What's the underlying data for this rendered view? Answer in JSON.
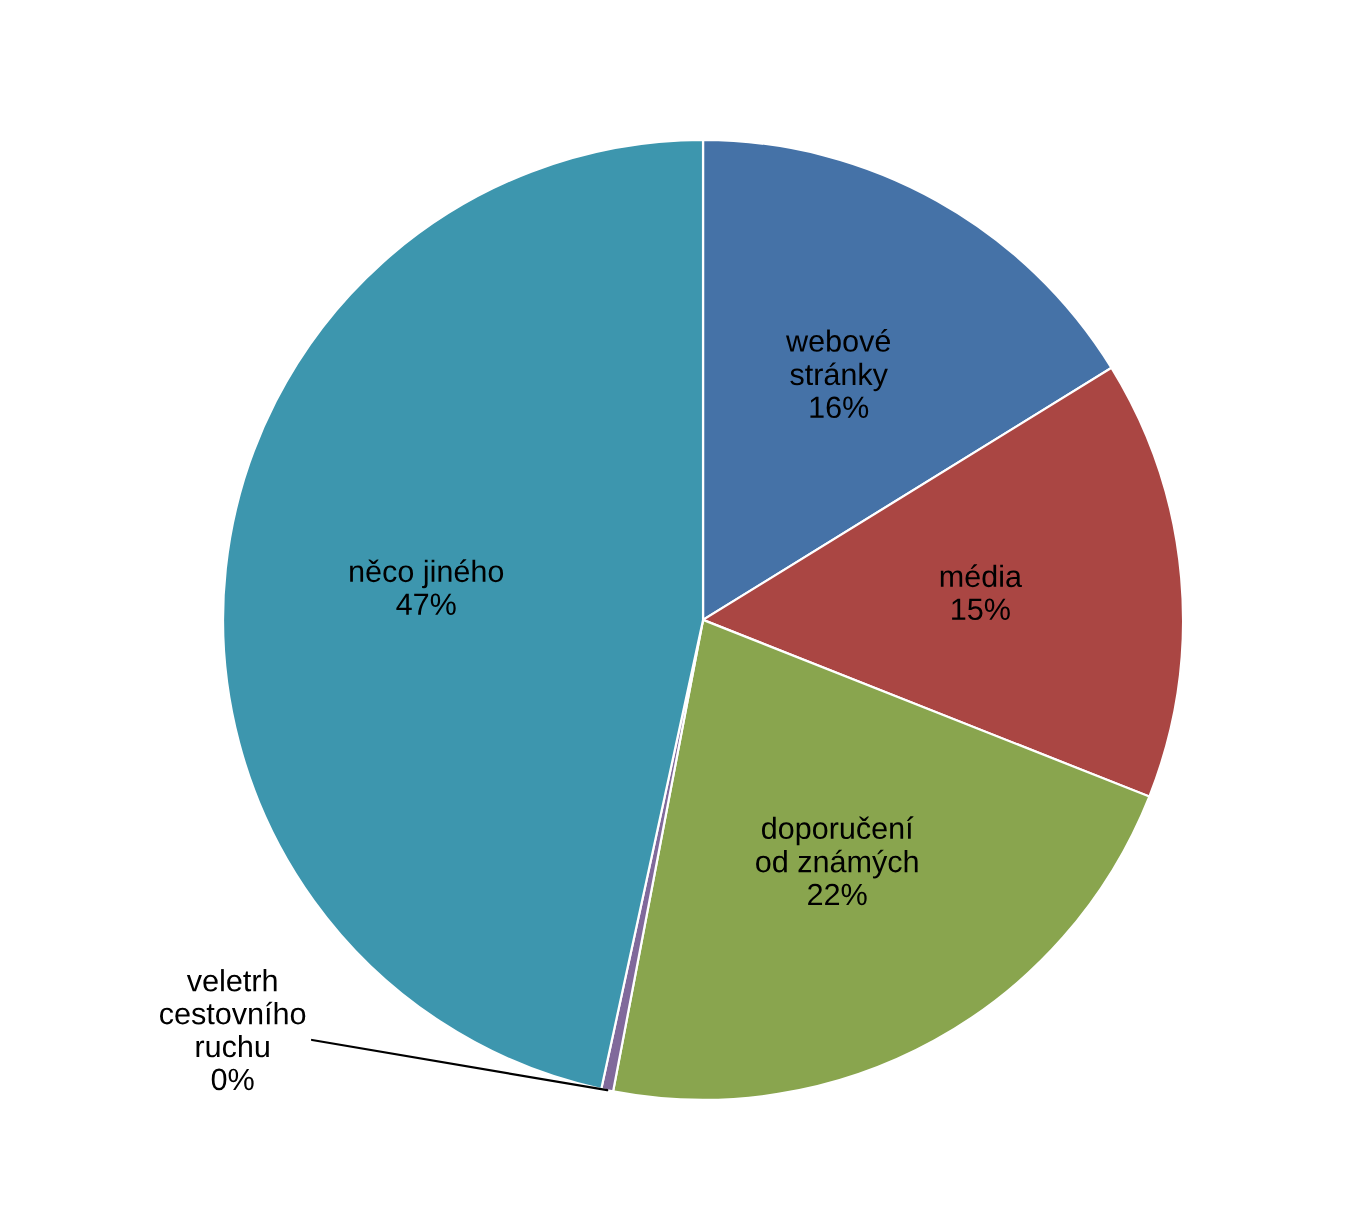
{
  "chart_data": {
    "type": "pie",
    "categories": [
      "webové\nstránky",
      "média",
      "doporučení\nod známých",
      "veletrh\ncestovního\nruchu",
      "něco jiného"
    ],
    "values": [
      16.2,
      14.8,
      22.0,
      0.4,
      46.6
    ],
    "value_labels": [
      "16%",
      "15%",
      "22%",
      "0%",
      "47%"
    ],
    "colors": [
      "#4572a7",
      "#aa4643",
      "#89a54e",
      "#80699b",
      "#3d96ae"
    ],
    "legend": false
  }
}
